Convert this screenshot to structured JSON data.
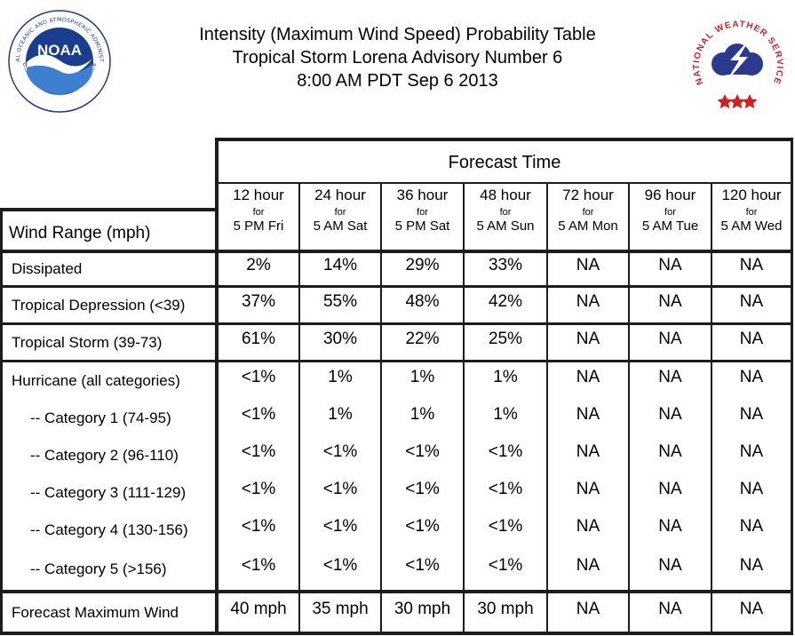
{
  "header": {
    "title_line1": "Intensity (Maximum Wind Speed) Probability Table",
    "title_line2": "Tropical Storm Lorena Advisory Number 6",
    "title_line3": "8:00 AM PDT Sep 6 2013",
    "noaa_logo_text": "NOAA",
    "noaa_logo_ring_text": "NATIONAL OCEANIC AND ATMOSPHERIC ADMINISTRATION",
    "noaa_logo_bottom_text": "U.S. DEPARTMENT OF COMMERCE",
    "nws_logo_ring_text": "NATIONAL WEATHER SERVICE"
  },
  "table": {
    "forecast_time_label": "Forecast Time",
    "wind_range_label": "Wind Range (mph)",
    "for_label": "for",
    "columns": [
      {
        "hours": "12 hour",
        "when": "5 PM Fri"
      },
      {
        "hours": "24 hour",
        "when": "5 AM Sat"
      },
      {
        "hours": "36 hour",
        "when": "5 PM Sat"
      },
      {
        "hours": "48 hour",
        "when": "5 AM Sun"
      },
      {
        "hours": "72 hour",
        "when": "5 AM Mon"
      },
      {
        "hours": "96 hour",
        "when": "5 AM Tue"
      },
      {
        "hours": "120 hour",
        "when": "5 AM Wed"
      }
    ],
    "rows": [
      {
        "label": "Dissipated",
        "values": [
          "2%",
          "14%",
          "29%",
          "33%",
          "NA",
          "NA",
          "NA"
        ]
      },
      {
        "label": "Tropical Depression (<39)",
        "values": [
          "37%",
          "55%",
          "48%",
          "42%",
          "NA",
          "NA",
          "NA"
        ]
      },
      {
        "label": "Tropical Storm (39-73)",
        "values": [
          "61%",
          "30%",
          "22%",
          "25%",
          "NA",
          "NA",
          "NA"
        ]
      },
      {
        "label": "Hurricane (all categories)",
        "values": [
          "<1%",
          "1%",
          "1%",
          "1%",
          "NA",
          "NA",
          "NA"
        ]
      },
      {
        "label": "-- Category 1 (74-95)",
        "values": [
          "<1%",
          "1%",
          "1%",
          "1%",
          "NA",
          "NA",
          "NA"
        ]
      },
      {
        "label": "-- Category 2 (96-110)",
        "values": [
          "<1%",
          "<1%",
          "<1%",
          "<1%",
          "NA",
          "NA",
          "NA"
        ]
      },
      {
        "label": "-- Category 3 (111-129)",
        "values": [
          "<1%",
          "<1%",
          "<1%",
          "<1%",
          "NA",
          "NA",
          "NA"
        ]
      },
      {
        "label": "-- Category 4 (130-156)",
        "values": [
          "<1%",
          "<1%",
          "<1%",
          "<1%",
          "NA",
          "NA",
          "NA"
        ]
      },
      {
        "label": "-- Category 5 (>156)",
        "values": [
          "<1%",
          "<1%",
          "<1%",
          "<1%",
          "NA",
          "NA",
          "NA"
        ]
      },
      {
        "label": "Forecast Maximum Wind",
        "values": [
          "40 mph",
          "35 mph",
          "30 mph",
          "30 mph",
          "NA",
          "NA",
          "NA"
        ]
      }
    ]
  },
  "colors": {
    "noaa_blue": "#1a3d8f",
    "noaa_light_blue": "#3f7fd0",
    "nws_red": "#cc2222",
    "nws_cloud": "#2b3a8c",
    "grid_line": "#1c1c1c"
  }
}
